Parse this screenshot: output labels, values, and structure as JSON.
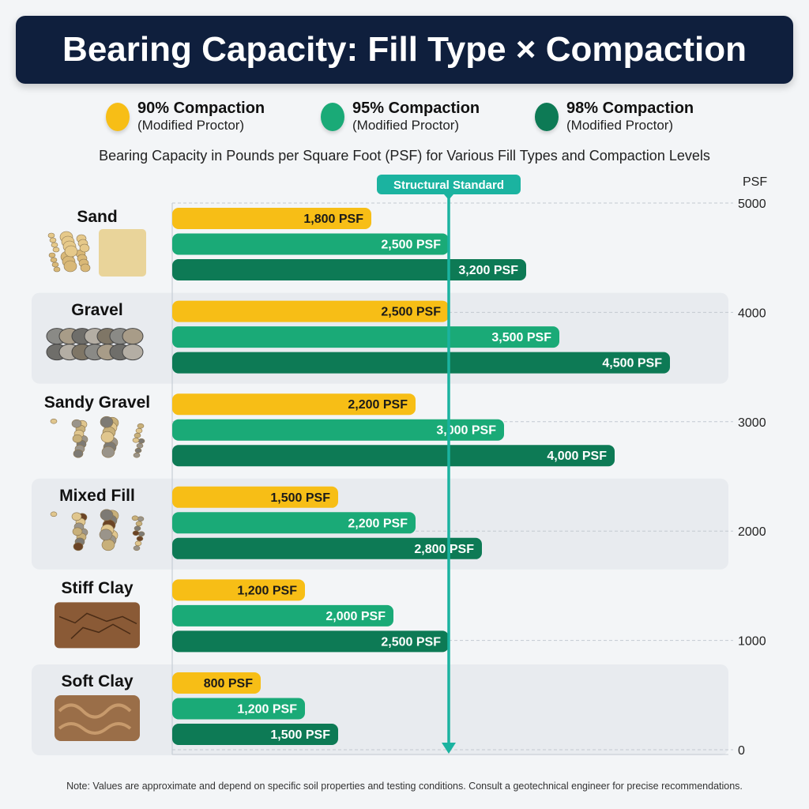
{
  "title": "Bearing Capacity: Fill Type × Compaction",
  "subtitle": "Bearing Capacity in Pounds per Square Foot (PSF) for Various Fill Types and Compaction Levels",
  "legend": [
    {
      "line1": "90% Compaction",
      "line2": "(Modified Proctor)",
      "color": "#f7be16"
    },
    {
      "line1": "95% Compaction",
      "line2": "(Modified Proctor)",
      "color": "#1aaa77"
    },
    {
      "line1": "98% Compaction",
      "line2": "(Modified Proctor)",
      "color": "#0d7a55"
    }
  ],
  "note": "Note: Values are approximate and depend on specific soil properties and testing conditions. Consult a geotechnical engineer for precise recommendations.",
  "chart_data": {
    "type": "bar",
    "orientation": "horizontal",
    "categories": [
      "Sand",
      "Gravel",
      "Sandy Gravel",
      "Mixed Fill",
      "Stiff Clay",
      "Soft Clay"
    ],
    "icons": [
      "sand-icon",
      "gravel-icon",
      "sandy-gravel-icon",
      "mixed-fill-icon",
      "stiff-clay-icon",
      "soft-clay-icon"
    ],
    "series": [
      {
        "name": "90% Compaction",
        "color": "#f7be16",
        "values": [
          1800,
          2500,
          2200,
          1500,
          1200,
          800
        ],
        "labels": [
          "1,800 PSF",
          "2,500 PSF",
          "2,200 PSF",
          "1,500 PSF",
          "1,200 PSF",
          "800 PSF"
        ]
      },
      {
        "name": "95% Compaction",
        "color": "#1aaa77",
        "values": [
          2500,
          3500,
          3000,
          2200,
          2000,
          1200
        ],
        "labels": [
          "2,500 PSF",
          "3,500 PSF",
          "3,000 PSF",
          "2,200 PSF",
          "2,000 PSF",
          "1,200 PSF"
        ]
      },
      {
        "name": "98% Compaction",
        "color": "#0d7a55",
        "values": [
          3200,
          4500,
          4000,
          2800,
          2500,
          1500
        ],
        "labels": [
          "3,200 PSF",
          "4,500 PSF",
          "4,000 PSF",
          "2,800 PSF",
          "2,500 PSF",
          "1,500 PSF"
        ]
      }
    ],
    "axis_label": "PSF",
    "axis_ticks": [
      "5000",
      "4000",
      "3000",
      "2000",
      "1000",
      "0"
    ],
    "range": [
      0,
      5000
    ],
    "grid": true,
    "reference_line": {
      "label": "Structural Standard",
      "value": 2500,
      "color": "#1bb3a0"
    },
    "legend_position": "top"
  }
}
